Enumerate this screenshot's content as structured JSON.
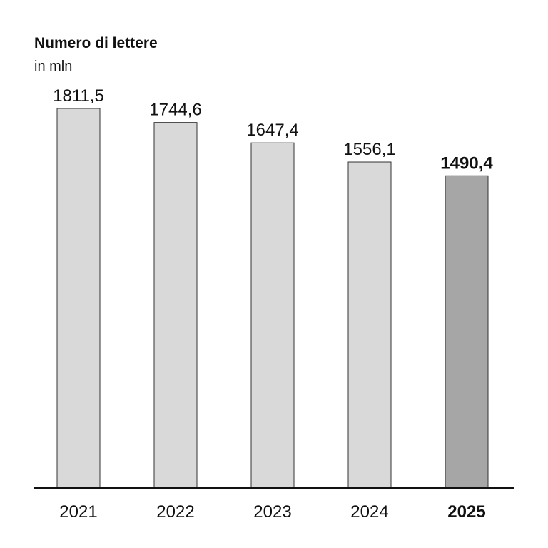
{
  "chart_data": {
    "type": "bar",
    "title": "Numero di lettere",
    "subtitle": "in mln",
    "categories": [
      "2021",
      "2022",
      "2023",
      "2024",
      "2025"
    ],
    "values": [
      1811.5,
      1744.6,
      1647.4,
      1556.1,
      1490.4
    ],
    "value_labels": [
      "1811,5",
      "1744,6",
      "1647,4",
      "1556,1",
      "1490,4"
    ],
    "colors": [
      "#d9d9d9",
      "#d9d9d9",
      "#d9d9d9",
      "#d9d9d9",
      "#a6a6a6"
    ],
    "bold": [
      false,
      false,
      false,
      false,
      true
    ]
  }
}
